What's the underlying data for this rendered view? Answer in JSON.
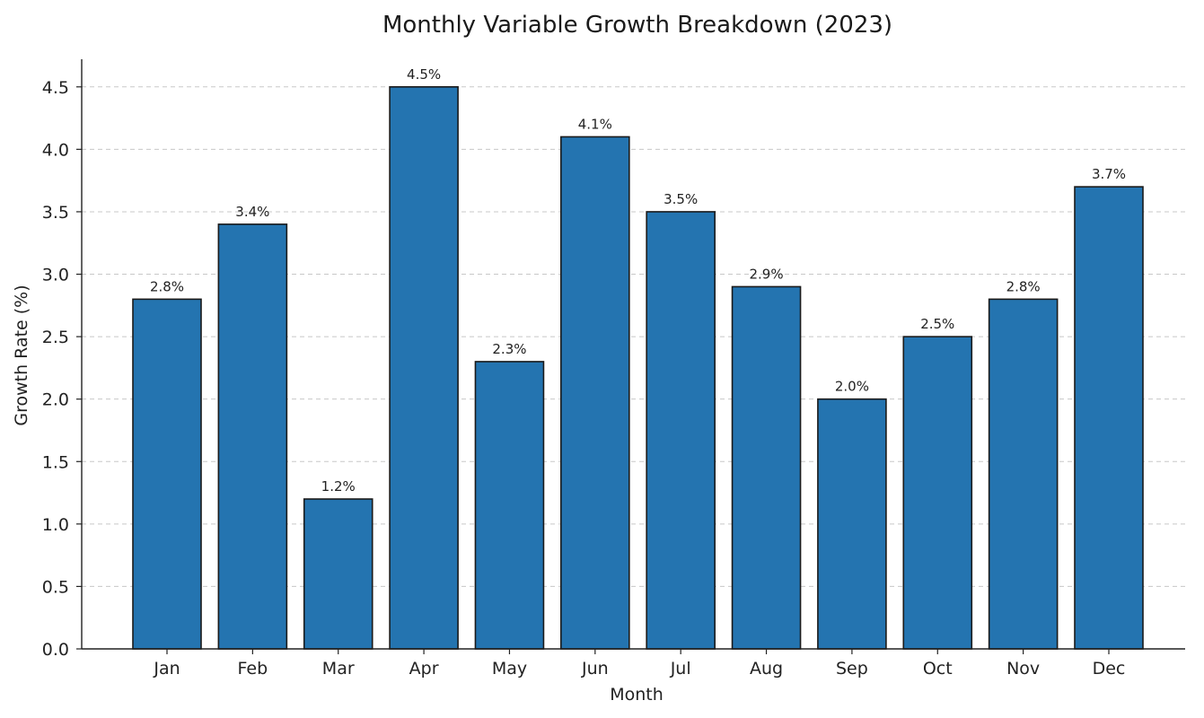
{
  "chart_data": {
    "type": "bar",
    "title": "Monthly Variable Growth Breakdown (2023)",
    "xlabel": "Month",
    "ylabel": "Growth Rate (%)",
    "categories": [
      "Jan",
      "Feb",
      "Mar",
      "Apr",
      "May",
      "Jun",
      "Jul",
      "Aug",
      "Sep",
      "Oct",
      "Nov",
      "Dec"
    ],
    "values": [
      2.8,
      3.4,
      1.2,
      4.5,
      2.3,
      4.1,
      3.5,
      2.9,
      2.0,
      2.5,
      2.8,
      3.7
    ],
    "data_labels": [
      "2.8%",
      "3.4%",
      "1.2%",
      "4.5%",
      "2.3%",
      "4.1%",
      "3.5%",
      "2.9%",
      "2.0%",
      "2.5%",
      "2.8%",
      "3.7%"
    ],
    "ylim": [
      0,
      4.75
    ],
    "yticks": [
      0.0,
      0.5,
      1.0,
      1.5,
      2.0,
      2.5,
      3.0,
      3.5,
      4.0,
      4.5
    ],
    "ytick_labels": [
      "0.0",
      "0.5",
      "1.0",
      "1.5",
      "2.0",
      "2.5",
      "3.0",
      "3.5",
      "4.0",
      "4.5"
    ],
    "grid": "y-dashed",
    "legend": "none",
    "colors": {
      "bar": "#2474b0",
      "bar_edge": "#1a1a1a",
      "grid": "#c8c8c8",
      "text": "#222222"
    }
  }
}
